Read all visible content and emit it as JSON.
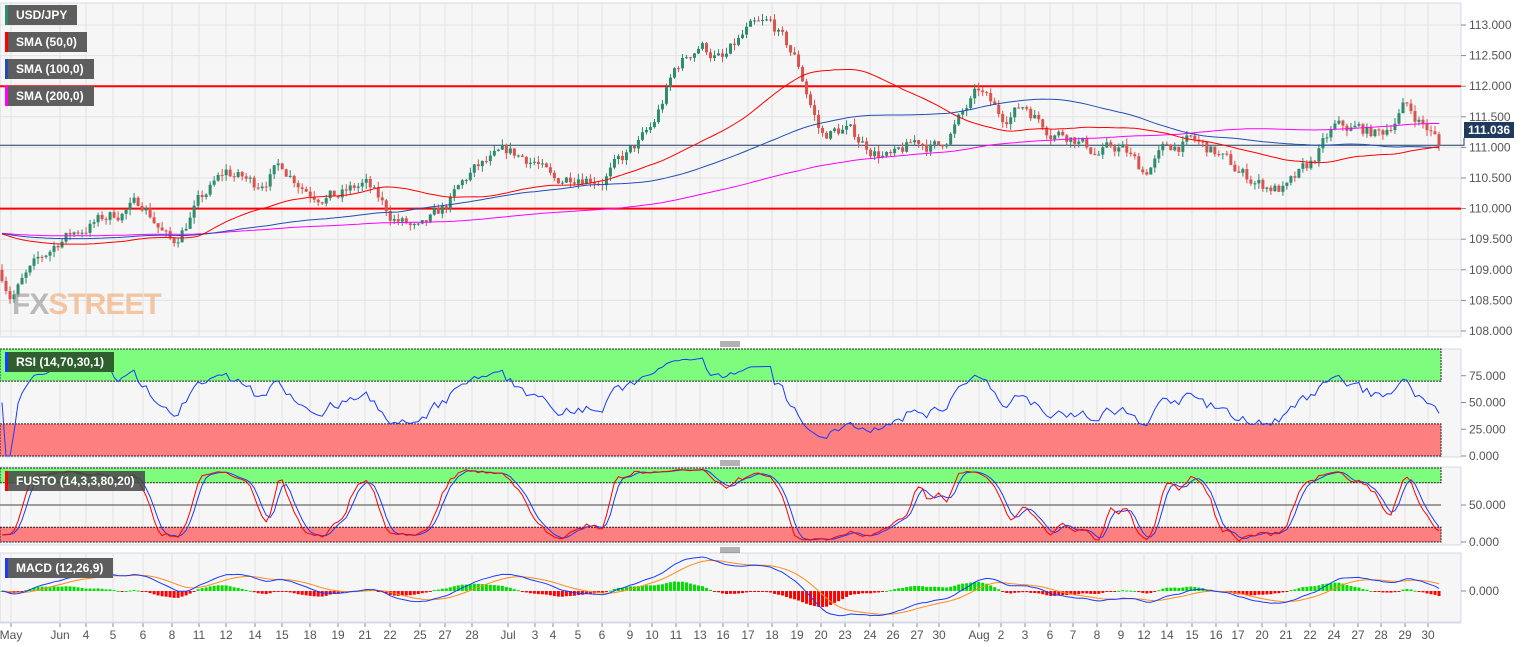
{
  "legends": {
    "symbol": {
      "label": "USD/JPY",
      "color": "#2e8b6e"
    },
    "sma50": {
      "label": "SMA (50,0)",
      "color": "#ff0000"
    },
    "sma100": {
      "label": "SMA (100,0)",
      "color": "#1f4fb5"
    },
    "sma200": {
      "label": "SMA (200,0)",
      "color": "#ff00ff"
    },
    "rsi": {
      "label": "RSI (14,70,30,1)",
      "color": "#1a3cff"
    },
    "fusto": {
      "label": "FUSTO (14,3,3,80,20)",
      "color": "#ff0000"
    },
    "macd": {
      "label": "MACD (12,26,9)",
      "color": "#1a3cff"
    }
  },
  "watermark": {
    "part1": "FX",
    "part2": "STREET"
  },
  "current_price": "111.036",
  "chart_data": {
    "type": "candlestick",
    "symbol": "USD/JPY",
    "ylim": [
      108.0,
      113.3
    ],
    "y_ticks": [
      "113.000",
      "112.500",
      "112.000",
      "111.500",
      "111.000",
      "110.500",
      "110.000",
      "109.500",
      "109.000",
      "108.500",
      "108.000"
    ],
    "horizontal_levels": [
      112.0,
      110.0
    ],
    "level_color": "#ff0000",
    "last_price": 111.036,
    "x_labels": [
      "May",
      "Jun",
      "4",
      "5",
      "6",
      "8",
      "11",
      "12",
      "14",
      "15",
      "18",
      "19",
      "21",
      "22",
      "25",
      "27",
      "28",
      "Jul",
      "3",
      "4",
      "5",
      "6",
      "9",
      "10",
      "11",
      "13",
      "16",
      "17",
      "18",
      "19",
      "20",
      "23",
      "24",
      "26",
      "27",
      "30",
      "Aug",
      "2",
      "3",
      "6",
      "7",
      "8",
      "9",
      "12",
      "14",
      "15",
      "16",
      "17",
      "20",
      "21",
      "22",
      "24",
      "27",
      "28",
      "29",
      "30"
    ],
    "approx_close_at_labels": [
      108.6,
      109.5,
      109.7,
      109.9,
      110.1,
      109.4,
      110.1,
      110.6,
      110.4,
      110.7,
      110.3,
      110.2,
      110.4,
      109.9,
      109.6,
      110.0,
      110.6,
      110.9,
      110.8,
      110.4,
      110.6,
      110.5,
      110.9,
      111.3,
      112.3,
      112.7,
      112.4,
      112.9,
      113.0,
      112.4,
      111.2,
      111.3,
      111.0,
      110.8,
      111.1,
      111.0,
      111.9,
      111.5,
      111.7,
      111.3,
      111.2,
      110.9,
      111.0,
      110.6,
      111.0,
      111.1,
      110.9,
      110.6,
      110.4,
      110.3,
      110.7,
      111.3,
      111.3,
      111.2,
      111.7,
      111.3
    ],
    "colors": {
      "up": "#2e8b6e",
      "down": "#d9534f",
      "sma50": "#ff0000",
      "sma100": "#1f4fb5",
      "sma200": "#ff00ff"
    },
    "indicators": {
      "rsi": {
        "period": 14,
        "upper": 70,
        "lower": 30,
        "y_ticks": [
          "75.000",
          "50.000",
          "25.000",
          "0.000"
        ],
        "ylim": [
          0,
          100
        ]
      },
      "fusto": {
        "k": 14,
        "smooth_k": 3,
        "d": 3,
        "upper": 80,
        "lower": 20,
        "y_ticks": [
          "50.000",
          "0.000"
        ],
        "ylim": [
          0,
          100
        ]
      },
      "macd": {
        "fast": 12,
        "slow": 26,
        "signal": 9,
        "y_ticks": [
          "0.000"
        ]
      }
    },
    "grid": true
  }
}
